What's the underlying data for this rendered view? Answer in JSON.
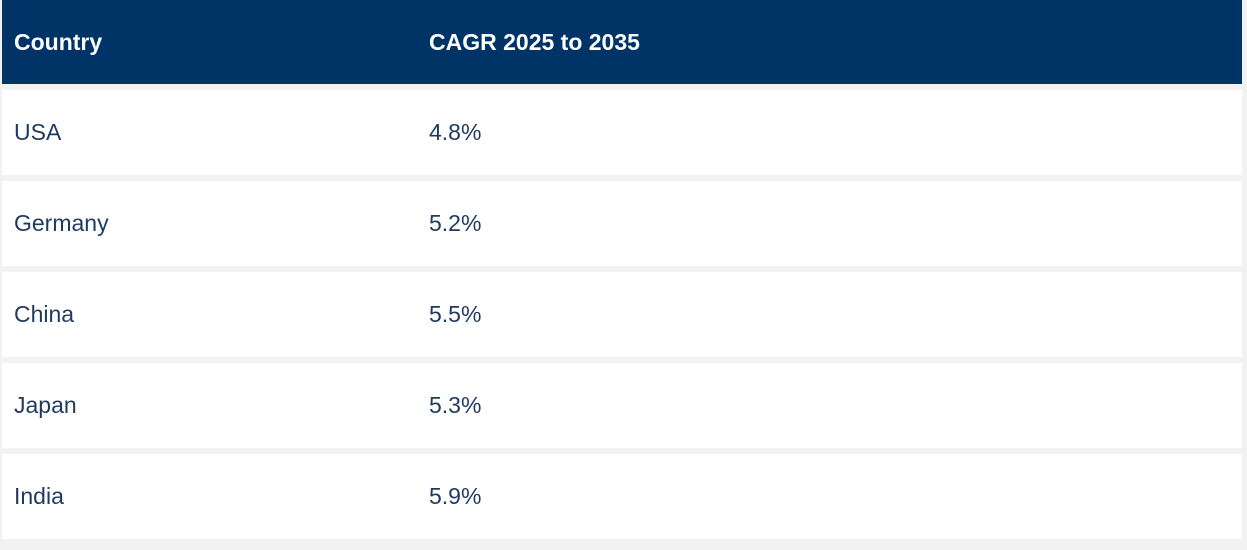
{
  "table": {
    "headers": {
      "country": "Country",
      "cagr": "CAGR 2025 to 2035"
    },
    "rows": [
      {
        "country": "USA",
        "cagr": "4.8%"
      },
      {
        "country": "Germany",
        "cagr": "5.2%"
      },
      {
        "country": "China",
        "cagr": "5.5%"
      },
      {
        "country": "Japan",
        "cagr": "5.3%"
      },
      {
        "country": "India",
        "cagr": "5.9%"
      }
    ]
  },
  "colors": {
    "header_background": "#003366",
    "header_text": "#ffffff",
    "body_text": "#1f3a5f",
    "row_background": "#ffffff",
    "separator": "#f2f2f2"
  }
}
